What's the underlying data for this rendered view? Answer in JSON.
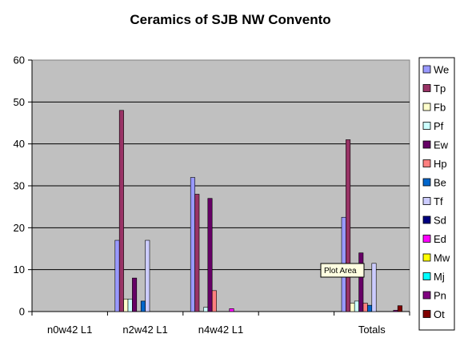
{
  "chart_data": {
    "type": "bar",
    "title": "Ceramics of SJB NW Convento",
    "categories": [
      "n0w42 L1",
      "n2w42 L1",
      "n4w42 L1",
      "",
      "Totals"
    ],
    "ylim": [
      0,
      60
    ],
    "yticks": [
      0,
      10,
      20,
      30,
      40,
      50,
      60
    ],
    "grid": true,
    "legend_position": "right",
    "plot_background": "#c0c0c0",
    "series": [
      {
        "name": "We",
        "color": "#9999ff",
        "values": [
          0,
          17,
          32,
          0,
          22.5
        ]
      },
      {
        "name": "Tp",
        "color": "#993366",
        "values": [
          0,
          48,
          28,
          0,
          41
        ]
      },
      {
        "name": "Fb",
        "color": "#ffffcc",
        "values": [
          0,
          3,
          0,
          0,
          2
        ]
      },
      {
        "name": "Pf",
        "color": "#ccffff",
        "values": [
          0,
          3,
          1,
          0,
          2.5
        ]
      },
      {
        "name": "Ew",
        "color": "#660066",
        "values": [
          0,
          8,
          27,
          0,
          14
        ]
      },
      {
        "name": "Hp",
        "color": "#ff8080",
        "values": [
          0,
          0,
          5,
          0,
          2
        ]
      },
      {
        "name": "Be",
        "color": "#0066cc",
        "values": [
          0,
          2.5,
          0,
          0,
          1.5
        ]
      },
      {
        "name": "Tf",
        "color": "#ccccff",
        "values": [
          0,
          17,
          0,
          0,
          11.5
        ]
      },
      {
        "name": "Sd",
        "color": "#000080",
        "values": [
          0,
          0,
          0,
          0,
          0
        ]
      },
      {
        "name": "Ed",
        "color": "#ff00ff",
        "values": [
          0,
          0,
          0.7,
          0,
          0
        ]
      },
      {
        "name": "Mw",
        "color": "#ffff00",
        "values": [
          0,
          0,
          0,
          0,
          0
        ]
      },
      {
        "name": "Mj",
        "color": "#00ffff",
        "values": [
          0,
          0,
          0,
          0,
          0
        ]
      },
      {
        "name": "Pn",
        "color": "#800080",
        "values": [
          0,
          0,
          0,
          0,
          0.3
        ]
      },
      {
        "name": "Ot",
        "color": "#800000",
        "values": [
          0,
          0,
          0,
          0,
          1.4
        ]
      }
    ]
  },
  "tooltip": {
    "label": "Plot Area"
  }
}
